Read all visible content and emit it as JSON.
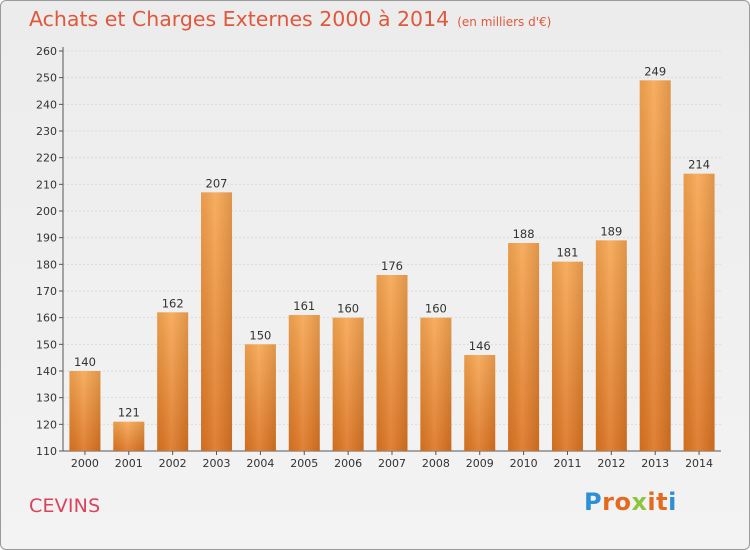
{
  "chart_data": {
    "type": "bar",
    "title": "Achats et Charges Externes 2000 à 2014",
    "subtitle": "(en milliers d'€)",
    "xlabel": "",
    "ylabel": "",
    "categories": [
      "2000",
      "2001",
      "2002",
      "2003",
      "2004",
      "2005",
      "2006",
      "2007",
      "2008",
      "2009",
      "2010",
      "2011",
      "2012",
      "2013",
      "2014"
    ],
    "values": [
      140,
      121,
      162,
      207,
      150,
      161,
      160,
      176,
      160,
      146,
      188,
      181,
      189,
      249,
      214
    ],
    "ylim": [
      110,
      260
    ],
    "ytick_step": 10,
    "grid": true,
    "legend": "none",
    "bar_color": "#f0913a"
  },
  "footer": {
    "town": "CEVINS",
    "logo_letters": [
      {
        "ch": "P",
        "color": "#2d8fd6"
      },
      {
        "ch": "r",
        "color": "#e36a1f"
      },
      {
        "ch": "o",
        "color": "#e36a1f"
      },
      {
        "ch": "x",
        "color": "#8cc63f"
      },
      {
        "ch": "i",
        "color": "#e36a1f"
      },
      {
        "ch": "t",
        "color": "#e36a1f"
      },
      {
        "ch": "i",
        "color": "#2d8fd6"
      }
    ]
  }
}
